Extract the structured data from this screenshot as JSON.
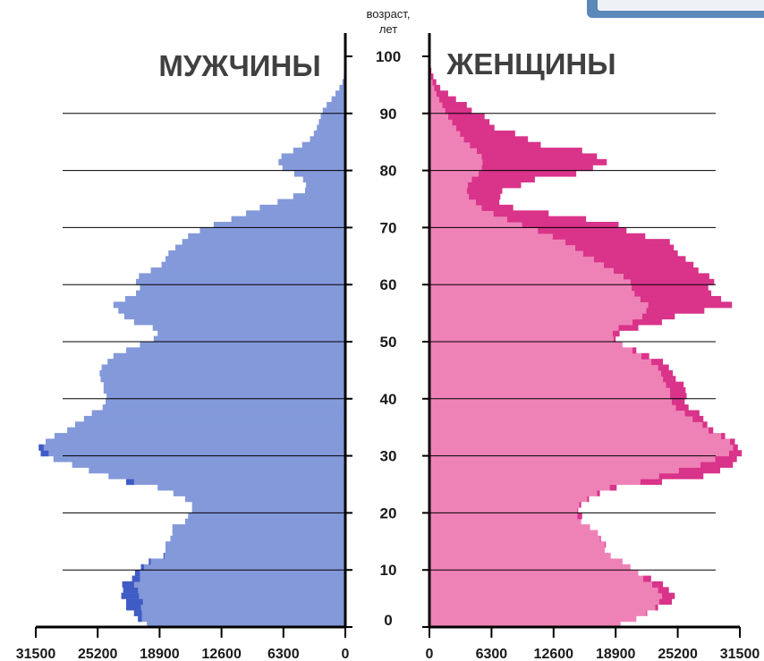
{
  "chart_data": {
    "type": "bar",
    "orientation": "horizontal",
    "axis_title": [
      "возраст,",
      "лет"
    ],
    "left_label": "МУЖЧИНЫ",
    "right_label": "ЖЕНЩИНЫ",
    "age_ticks": [
      0,
      10,
      20,
      30,
      40,
      50,
      60,
      70,
      80,
      90,
      100
    ],
    "x_ticks_left": [
      "31500",
      "25200",
      "18900",
      "12600",
      "6300",
      "0"
    ],
    "x_ticks_right": [
      "0",
      "6300",
      "12600",
      "18900",
      "25200",
      "31500"
    ],
    "xlim": [
      0,
      31500
    ],
    "ylim": [
      0,
      100
    ],
    "colors": {
      "male_base": "#8399da",
      "male_excess": "#3f5bc4",
      "female_base": "#ee82b6",
      "female_excess": "#d9338a",
      "axis": "#000000"
    },
    "series": [
      {
        "name": "МУЖЧИНЫ",
        "side": "left",
        "ages": [
          0,
          1,
          2,
          3,
          4,
          5,
          6,
          7,
          8,
          9,
          10,
          11,
          12,
          13,
          14,
          15,
          16,
          17,
          18,
          19,
          20,
          21,
          22,
          23,
          24,
          25,
          26,
          27,
          28,
          29,
          30,
          31,
          32,
          33,
          34,
          35,
          36,
          37,
          38,
          39,
          40,
          41,
          42,
          43,
          44,
          45,
          46,
          47,
          48,
          49,
          50,
          51,
          52,
          53,
          54,
          55,
          56,
          57,
          58,
          59,
          60,
          61,
          62,
          63,
          64,
          65,
          66,
          67,
          68,
          69,
          70,
          71,
          72,
          73,
          74,
          75,
          76,
          77,
          78,
          79,
          80,
          81,
          82,
          83,
          84,
          85,
          86,
          87,
          88,
          89,
          90,
          91,
          92,
          93,
          94,
          95,
          96,
          97,
          98,
          99
        ],
        "values": [
          20200,
          21100,
          21500,
          22300,
          22300,
          22800,
          22600,
          22700,
          21700,
          21400,
          20800,
          20000,
          18500,
          18300,
          18300,
          17800,
          17600,
          17600,
          16300,
          16000,
          15600,
          15600,
          16300,
          17500,
          19100,
          22300,
          24100,
          26100,
          27800,
          29700,
          31000,
          31200,
          30500,
          29600,
          28300,
          27500,
          26600,
          25800,
          24700,
          24400,
          24300,
          24600,
          24600,
          24900,
          25000,
          24800,
          24200,
          23600,
          22300,
          20900,
          19500,
          19100,
          19600,
          21500,
          22500,
          23100,
          23600,
          22400,
          21300,
          20900,
          21300,
          21000,
          19800,
          18700,
          18300,
          18000,
          17300,
          16600,
          16000,
          14800,
          13400,
          11600,
          10100,
          8700,
          6900,
          5300,
          4100,
          4000,
          4300,
          5200,
          6400,
          6800,
          6500,
          5300,
          4400,
          3600,
          3200,
          2900,
          2700,
          2500,
          2300,
          1900,
          1400,
          1000,
          600,
          300,
          150,
          80,
          40,
          15
        ],
        "excess": [
          0,
          400,
          800,
          1500,
          1700,
          1800,
          1500,
          1200,
          800,
          500,
          300,
          200,
          100,
          0,
          0,
          0,
          0,
          0,
          0,
          0,
          0,
          0,
          0,
          0,
          0,
          800,
          0,
          0,
          0,
          0,
          800,
          500,
          0,
          0,
          0,
          0,
          0,
          0,
          0,
          0,
          0,
          0,
          0,
          0,
          0,
          0,
          0,
          0,
          0,
          0,
          0,
          0,
          0,
          0,
          0,
          0,
          0,
          0,
          0,
          0,
          0,
          0,
          0,
          0,
          0,
          0,
          0,
          0,
          0,
          0,
          0,
          0,
          0,
          0,
          0,
          0,
          0,
          0,
          0,
          0,
          0,
          0,
          0,
          0,
          0,
          0,
          0,
          0,
          0,
          0,
          0,
          0,
          0,
          0,
          0,
          0,
          0,
          0,
          0,
          0
        ]
      },
      {
        "name": "ЖЕНЩИНЫ",
        "side": "right",
        "ages": [
          0,
          1,
          2,
          3,
          4,
          5,
          6,
          7,
          8,
          9,
          10,
          11,
          12,
          13,
          14,
          15,
          16,
          17,
          18,
          19,
          20,
          21,
          22,
          23,
          24,
          25,
          26,
          27,
          28,
          29,
          30,
          31,
          32,
          33,
          34,
          35,
          36,
          37,
          38,
          39,
          40,
          41,
          42,
          43,
          44,
          45,
          46,
          47,
          48,
          49,
          50,
          51,
          52,
          53,
          54,
          55,
          56,
          57,
          58,
          59,
          60,
          61,
          62,
          63,
          64,
          65,
          66,
          67,
          68,
          69,
          70,
          71,
          72,
          73,
          74,
          75,
          76,
          77,
          78,
          79,
          80,
          81,
          82,
          83,
          84,
          85,
          86,
          87,
          88,
          89,
          90,
          91,
          92,
          93,
          94,
          95,
          96,
          97,
          98,
          99
        ],
        "base": [
          19400,
          21000,
          22000,
          22900,
          23300,
          23600,
          23200,
          22600,
          21700,
          21200,
          20400,
          19600,
          18400,
          17800,
          17800,
          17300,
          17100,
          16300,
          15400,
          15000,
          15000,
          15200,
          16000,
          17000,
          18300,
          21400,
          23300,
          25300,
          27500,
          29000,
          30400,
          30800,
          30500,
          29600,
          28300,
          27700,
          26700,
          25900,
          25000,
          24600,
          24400,
          24400,
          24000,
          23700,
          23500,
          23200,
          22500,
          21500,
          20600,
          19600,
          18700,
          18600,
          19200,
          20600,
          21600,
          22000,
          22200,
          21400,
          20800,
          20500,
          20400,
          19700,
          18700,
          17700,
          16700,
          15600,
          14800,
          13800,
          12500,
          11000,
          9400,
          7900,
          6500,
          5300,
          4700,
          4000,
          3800,
          3900,
          4300,
          5000,
          5300,
          5400,
          5300,
          4800,
          4100,
          3500,
          3100,
          2700,
          2300,
          1900,
          1600,
          1300,
          1000,
          700,
          500,
          300,
          150,
          80,
          40,
          15
        ],
        "values": [
          19400,
          21000,
          22100,
          23200,
          24600,
          24900,
          24300,
          23700,
          22500,
          21200,
          20400,
          19600,
          18400,
          17800,
          17900,
          17400,
          17100,
          16300,
          15400,
          15500,
          15100,
          15400,
          16200,
          17300,
          19000,
          23600,
          27800,
          29500,
          30800,
          31200,
          31700,
          31300,
          31000,
          30000,
          28800,
          28200,
          27800,
          27400,
          26300,
          25900,
          26100,
          26000,
          25800,
          25000,
          24700,
          24300,
          23700,
          22300,
          21000,
          19500,
          18900,
          19300,
          21200,
          23600,
          24900,
          27900,
          30700,
          29600,
          28600,
          28300,
          28900,
          28400,
          27300,
          26800,
          26000,
          25200,
          24800,
          24400,
          21900,
          20000,
          19200,
          15900,
          12100,
          8500,
          7100,
          7200,
          7400,
          9300,
          10700,
          14900,
          16600,
          18000,
          17000,
          15500,
          11300,
          10000,
          8700,
          6600,
          6100,
          5600,
          4300,
          3800,
          2700,
          1900,
          1100,
          700,
          400,
          200,
          100,
          40
        ]
      }
    ]
  }
}
